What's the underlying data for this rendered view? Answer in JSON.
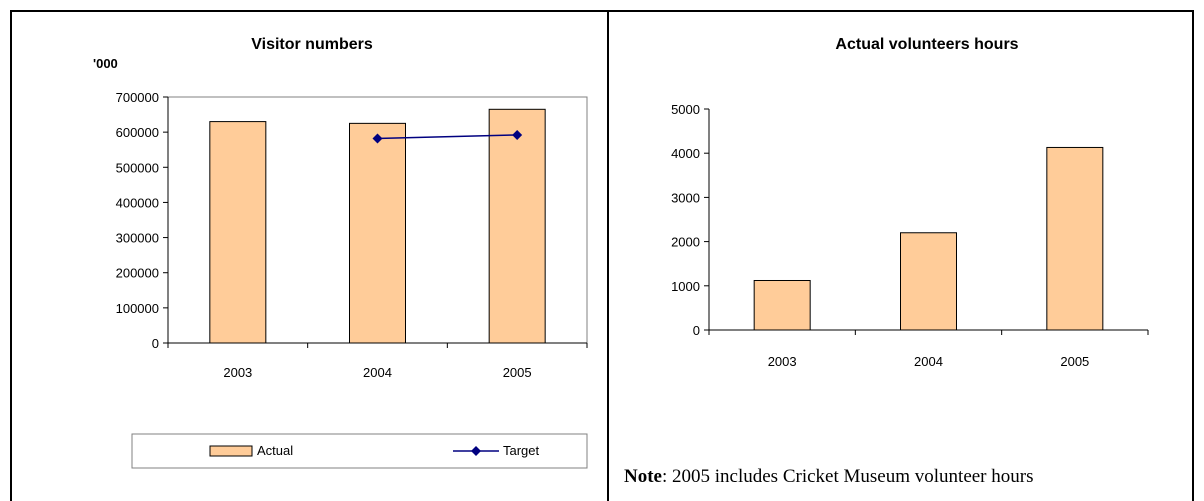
{
  "colors": {
    "bar_fill": "#FFCC99",
    "bar_stroke": "#000000",
    "target_line": "#000080"
  },
  "chart_data": [
    {
      "type": "bar",
      "title": "Visitor numbers",
      "ylabel": "'000",
      "categories": [
        "2003",
        "2004",
        "2005"
      ],
      "ylim": [
        0,
        700000
      ],
      "yticks": [
        "0",
        "100000",
        "200000",
        "300000",
        "400000",
        "500000",
        "600000",
        "700000"
      ],
      "legend_position": "bottom",
      "series": [
        {
          "name": "Actual",
          "kind": "bar",
          "values": [
            630000,
            625000,
            665000
          ]
        },
        {
          "name": "Target",
          "kind": "line",
          "values": [
            null,
            582000,
            592000
          ]
        }
      ]
    },
    {
      "type": "bar",
      "title": "Actual volunteers hours",
      "categories": [
        "2003",
        "2004",
        "2005"
      ],
      "ylim": [
        0,
        5000
      ],
      "yticks": [
        "0",
        "1000",
        "2000",
        "3000",
        "4000",
        "5000"
      ],
      "values": [
        1120,
        2200,
        4130
      ]
    }
  ],
  "note": {
    "label": "Note",
    "text": ": 2005 includes Cricket Museum volunteer hours"
  }
}
